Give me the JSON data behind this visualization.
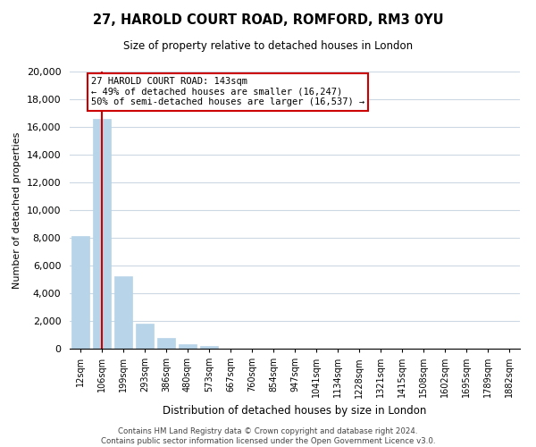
{
  "title_line1": "27, HAROLD COURT ROAD, ROMFORD, RM3 0YU",
  "title_line2": "Size of property relative to detached houses in London",
  "xlabel": "Distribution of detached houses by size in London",
  "ylabel": "Number of detached properties",
  "bar_labels": [
    "12sqm",
    "106sqm",
    "199sqm",
    "293sqm",
    "386sqm",
    "480sqm",
    "573sqm",
    "667sqm",
    "760sqm",
    "854sqm",
    "947sqm",
    "1041sqm",
    "1134sqm",
    "1228sqm",
    "1321sqm",
    "1415sqm",
    "1508sqm",
    "1602sqm",
    "1695sqm",
    "1789sqm",
    "1882sqm"
  ],
  "bar_values": [
    8100,
    16550,
    5250,
    1800,
    750,
    300,
    220,
    0,
    0,
    0,
    0,
    0,
    0,
    0,
    0,
    0,
    0,
    0,
    0,
    0,
    0
  ],
  "bar_color": "#b8d4e8",
  "property_line_x": 1.0,
  "property_line_color": "#cc0000",
  "annotation_line1": "27 HAROLD COURT ROAD: 143sqm",
  "annotation_line2": "← 49% of detached houses are smaller (16,247)",
  "annotation_line3": "50% of semi-detached houses are larger (16,537) →",
  "annotation_box_color": "#ffffff",
  "annotation_border_color": "#cc0000",
  "ylim": [
    0,
    20000
  ],
  "yticks": [
    0,
    2000,
    4000,
    6000,
    8000,
    10000,
    12000,
    14000,
    16000,
    18000,
    20000
  ],
  "footer_line1": "Contains HM Land Registry data © Crown copyright and database right 2024.",
  "footer_line2": "Contains public sector information licensed under the Open Government Licence v3.0.",
  "background_color": "#ffffff",
  "grid_color": "#ccd9e5"
}
